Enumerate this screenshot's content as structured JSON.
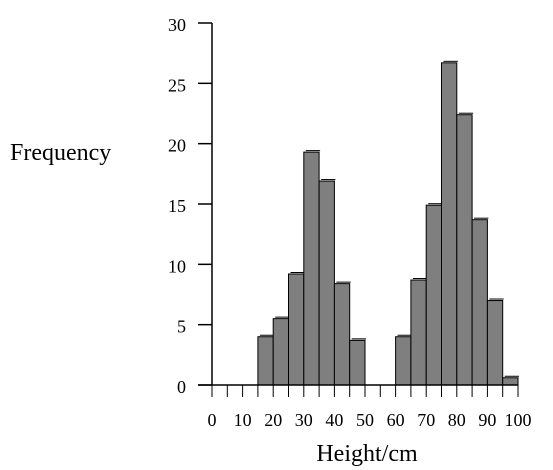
{
  "chart_data": {
    "type": "bar",
    "title": "",
    "xlabel": "Height/cm",
    "ylabel": "Frequency",
    "bin_width": 5,
    "bins": [
      {
        "start": 15,
        "end": 20,
        "value": 4
      },
      {
        "start": 20,
        "end": 25,
        "value": 5.5
      },
      {
        "start": 25,
        "end": 30,
        "value": 9.2
      },
      {
        "start": 30,
        "end": 35,
        "value": 19.3
      },
      {
        "start": 35,
        "end": 40,
        "value": 16.9
      },
      {
        "start": 40,
        "end": 45,
        "value": 8.4
      },
      {
        "start": 45,
        "end": 50,
        "value": 3.7
      },
      {
        "start": 60,
        "end": 65,
        "value": 4
      },
      {
        "start": 65,
        "end": 70,
        "value": 8.7
      },
      {
        "start": 70,
        "end": 75,
        "value": 14.9
      },
      {
        "start": 75,
        "end": 80,
        "value": 26.7
      },
      {
        "start": 80,
        "end": 85,
        "value": 22.4
      },
      {
        "start": 85,
        "end": 90,
        "value": 13.7
      },
      {
        "start": 90,
        "end": 95,
        "value": 7
      },
      {
        "start": 95,
        "end": 100,
        "value": 0.6
      }
    ],
    "xlim": [
      0,
      100
    ],
    "ylim": [
      0,
      30
    ],
    "x_ticks_major": [
      "0",
      "10",
      "20",
      "30",
      "40",
      "50",
      "60",
      "70",
      "80",
      "90",
      "100"
    ],
    "x_tick_minor_step": 5,
    "y_ticks": [
      "0",
      "5",
      "10",
      "15",
      "20",
      "25",
      "30"
    ],
    "grid": false,
    "bar_fill": "#7f7f7f",
    "bar_stroke": "#000000"
  }
}
